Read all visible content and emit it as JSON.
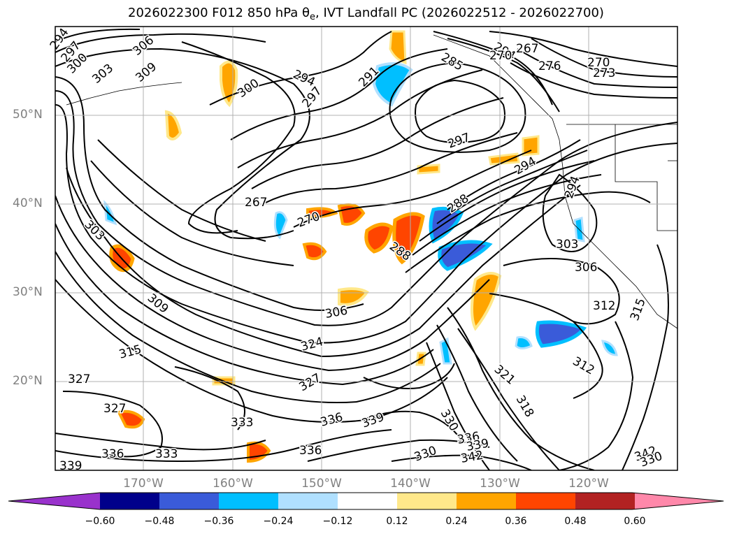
{
  "title": {
    "main": "2026022300 F012 850 hPa θ",
    "subscript": "e",
    "rest": ", IVT Landfall PC (2026022512 - 2026022700)"
  },
  "axes": {
    "lat_labels": [
      "50°N",
      "40°N",
      "30°N",
      "20°N"
    ],
    "lon_labels": [
      "170°W",
      "160°W",
      "150°W",
      "140°W",
      "130°W",
      "120°W"
    ]
  },
  "colorbar": {
    "levels": [
      "−0.60",
      "−0.48",
      "−0.36",
      "−0.24",
      "−0.12",
      "0.12",
      "0.24",
      "0.36",
      "0.48",
      "0.60"
    ],
    "colors": [
      "#9932cc",
      "#00008b",
      "#3a5bd9",
      "#00bfff",
      "#b0e0ff",
      "#ffffff",
      "#ffe88a",
      "#ffa500",
      "#ff4500",
      "#b22222",
      "#ff88aa"
    ]
  },
  "contour_labels": [
    "294",
    "297",
    "300",
    "303",
    "306",
    "309",
    "300",
    "294",
    "297",
    "291",
    "285",
    "294",
    "270",
    "267",
    "270",
    "276",
    "273",
    "267",
    "270",
    "288",
    "288",
    "297",
    "294",
    "294",
    "303",
    "306",
    "303",
    "312",
    "309",
    "315",
    "306",
    "324",
    "315",
    "321",
    "312",
    "318",
    "327",
    "327",
    "327",
    "336",
    "339",
    "330",
    "330",
    "336",
    "339",
    "336",
    "342",
    "333",
    "336",
    "339",
    "342",
    "330",
    "333"
  ]
}
